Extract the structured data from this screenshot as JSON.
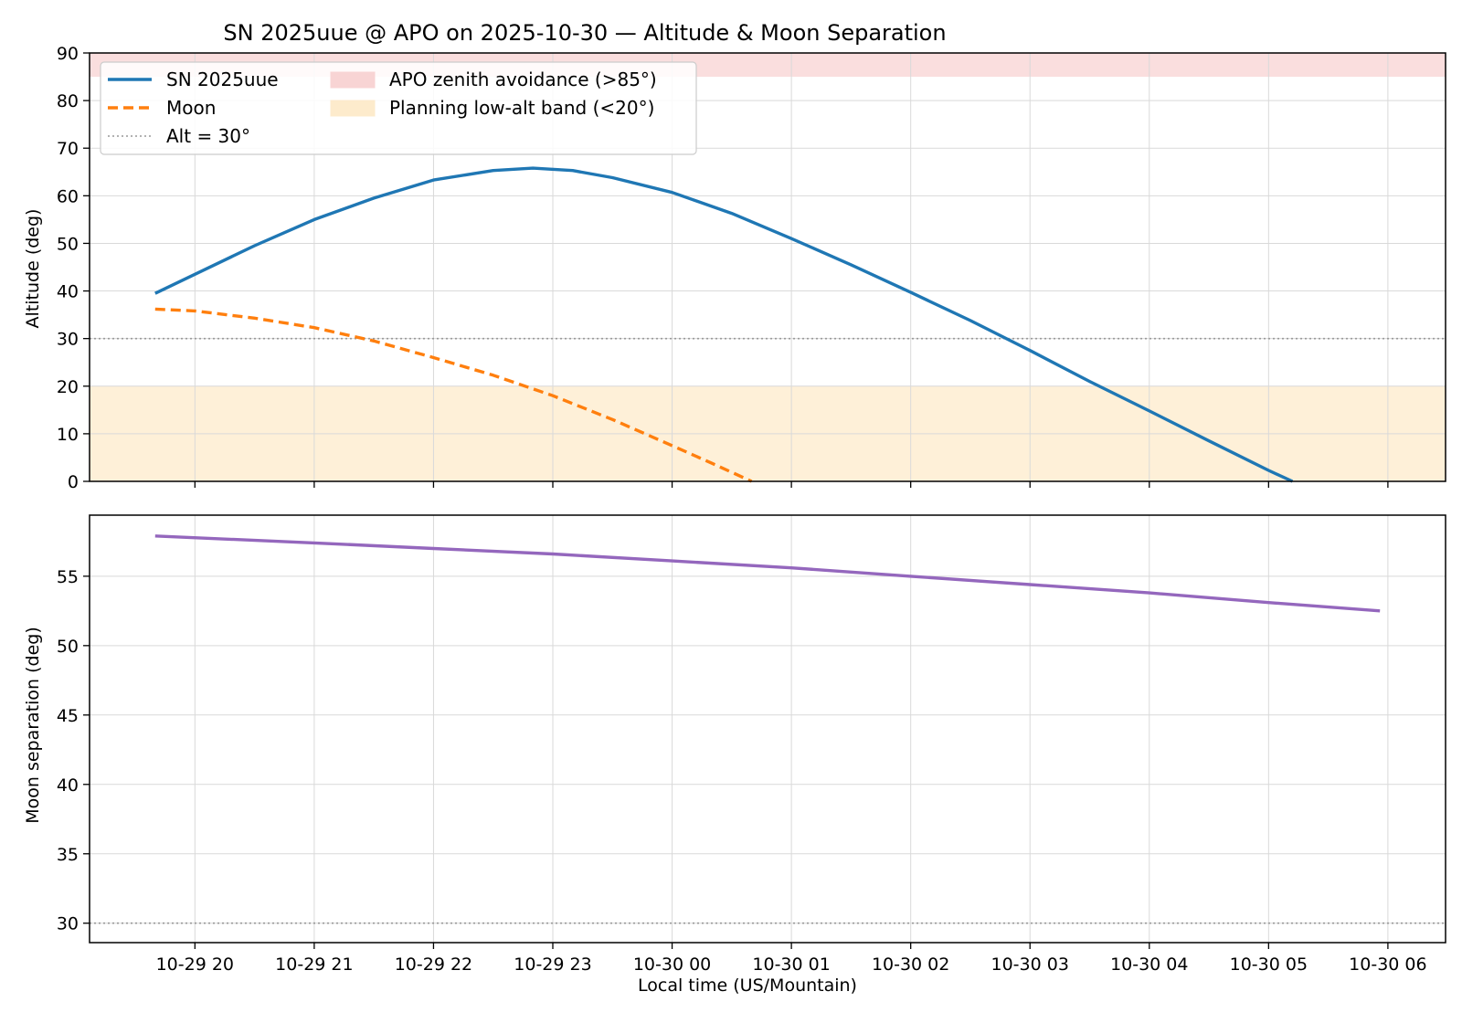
{
  "title": "SN 2025uue @ APO on 2025-10-30 — Altitude & Moon Separation",
  "colors": {
    "target": "#1f77b4",
    "moon": "#ff7f0e",
    "separation": "#9467bd",
    "zenith_band": "#f8d0d0",
    "low_band": "#fde9c7",
    "grid": "#d9d9d9",
    "ref_line": "#999999"
  },
  "chart_data": [
    {
      "type": "line",
      "ylabel": "Altitude (deg)",
      "xlabel": "",
      "xlim": [
        "2025-10-29 19:07",
        "2025-10-30 06:29"
      ],
      "ylim": [
        0,
        90
      ],
      "yticks": [
        0,
        10,
        20,
        30,
        40,
        50,
        60,
        70,
        80,
        90
      ],
      "grid": true,
      "legend_position": "top-left",
      "bands": [
        {
          "label": "APO zenith avoidance (>85°)",
          "y0": 85,
          "y1": 90,
          "color": "#f8d0d0"
        },
        {
          "label": "Planning low-alt band (<20°)",
          "y0": 0,
          "y1": 20,
          "color": "#fde9c7"
        }
      ],
      "hlines": [
        {
          "label": "Alt = 30°",
          "y": 30
        }
      ],
      "series": [
        {
          "name": "SN 2025uue",
          "style": "solid",
          "x": [
            "2025-10-29 19:40",
            "2025-10-29 20:00",
            "2025-10-29 20:30",
            "2025-10-29 21:00",
            "2025-10-29 21:30",
            "2025-10-29 22:00",
            "2025-10-29 22:30",
            "2025-10-29 22:50",
            "2025-10-29 23:10",
            "2025-10-29 23:30",
            "2025-10-30 00:00",
            "2025-10-30 00:30",
            "2025-10-30 01:00",
            "2025-10-30 01:30",
            "2025-10-30 02:00",
            "2025-10-30 02:30",
            "2025-10-30 03:00",
            "2025-10-30 03:30",
            "2025-10-30 04:00",
            "2025-10-30 04:30",
            "2025-10-30 05:00",
            "2025-10-30 05:12"
          ],
          "y": [
            39.5,
            43.5,
            49.5,
            55.0,
            59.5,
            63.3,
            65.3,
            65.8,
            65.3,
            63.8,
            60.7,
            56.3,
            51.0,
            45.5,
            39.7,
            33.8,
            27.5,
            21.0,
            14.8,
            8.5,
            2.3,
            0
          ]
        },
        {
          "name": "Moon",
          "style": "dashed",
          "x": [
            "2025-10-29 19:40",
            "2025-10-29 20:00",
            "2025-10-29 20:30",
            "2025-10-29 21:00",
            "2025-10-29 21:30",
            "2025-10-29 22:00",
            "2025-10-29 22:30",
            "2025-10-29 23:00",
            "2025-10-29 23:30",
            "2025-10-30 00:00",
            "2025-10-30 00:20",
            "2025-10-30 00:40"
          ],
          "y": [
            36.2,
            35.8,
            34.3,
            32.3,
            29.5,
            26.0,
            22.3,
            18.0,
            13.0,
            7.5,
            3.8,
            0
          ]
        }
      ]
    },
    {
      "type": "line",
      "ylabel": "Moon separation (deg)",
      "xlabel": "Local time (US/Mountain)",
      "xlim": [
        "2025-10-29 19:07",
        "2025-10-30 06:29"
      ],
      "ylim": [
        28.6,
        59.4
      ],
      "yticks": [
        30,
        35,
        40,
        45,
        50,
        55
      ],
      "xticks": [
        "10-29 20",
        "10-29 21",
        "10-29 22",
        "10-29 23",
        "10-30 00",
        "10-30 01",
        "10-30 02",
        "10-30 03",
        "10-30 04",
        "10-30 05",
        "10-30 06"
      ],
      "grid": true,
      "hlines": [
        {
          "y": 30
        }
      ],
      "series": [
        {
          "style": "solid",
          "x": [
            "2025-10-29 19:40",
            "2025-10-29 21:00",
            "2025-10-29 22:00",
            "2025-10-29 23:00",
            "2025-10-30 00:00",
            "2025-10-30 01:00",
            "2025-10-30 02:00",
            "2025-10-30 03:00",
            "2025-10-30 04:00",
            "2025-10-30 05:00",
            "2025-10-30 05:56"
          ],
          "y": [
            57.9,
            57.4,
            57.0,
            56.6,
            56.1,
            55.6,
            55.0,
            54.4,
            53.8,
            53.1,
            52.5
          ]
        }
      ]
    }
  ]
}
